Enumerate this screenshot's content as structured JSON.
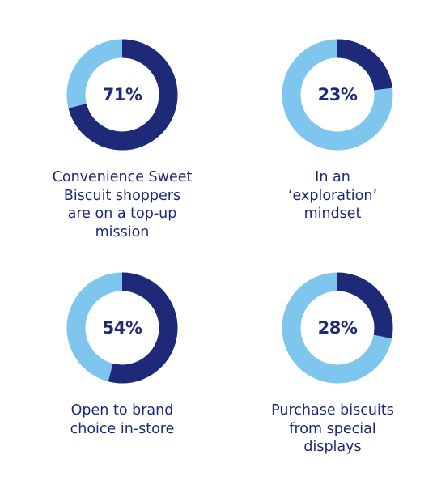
{
  "colors": {
    "highlight": "#1e2a78",
    "remainder": "#7fc6ee",
    "text": "#1e2a78",
    "background": "#ffffff"
  },
  "chart_data": [
    {
      "type": "pie",
      "style": "donut",
      "value": 71,
      "value_label": "71%",
      "caption_lines": [
        "Convenience Sweet",
        "Biscuit shoppers",
        "are on a top-up",
        "mission"
      ]
    },
    {
      "type": "pie",
      "style": "donut",
      "value": 23,
      "value_label": "23%",
      "caption_lines": [
        "In an",
        "‘exploration’",
        "mindset"
      ]
    },
    {
      "type": "pie",
      "style": "donut",
      "value": 54,
      "value_label": "54%",
      "caption_lines": [
        "Open to brand",
        "choice in-store"
      ]
    },
    {
      "type": "pie",
      "style": "donut",
      "value": 28,
      "value_label": "28%",
      "caption_lines": [
        "Purchase biscuits",
        "from special",
        "displays"
      ]
    }
  ]
}
